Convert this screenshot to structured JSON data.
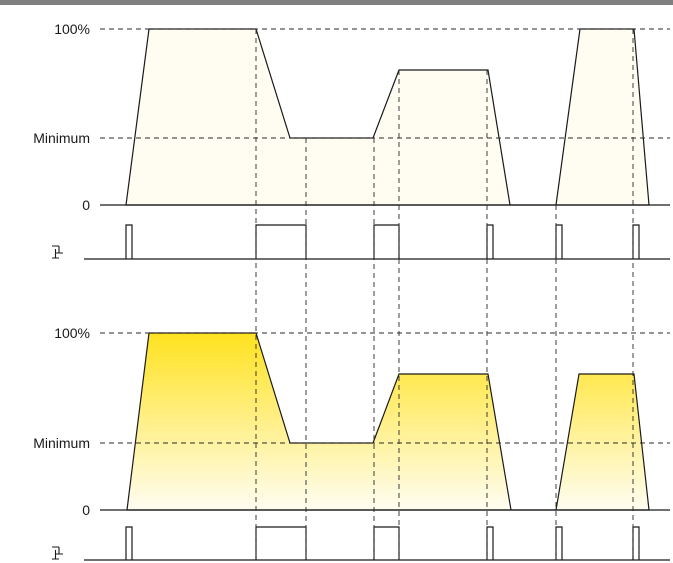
{
  "colors": {
    "fill_top": "#ffe21f",
    "fill_bottom": "#fffdf2",
    "line": "#1a1a1a",
    "top_bar": "#808080"
  },
  "panels": [
    {
      "labels": {
        "max": "100%",
        "min": "Minimum",
        "zero": "0"
      },
      "icon": "push-button-icon"
    },
    {
      "labels": {
        "max": "100%",
        "min": "Minimum",
        "zero": "0"
      },
      "icon": "push-button-icon"
    }
  ]
}
